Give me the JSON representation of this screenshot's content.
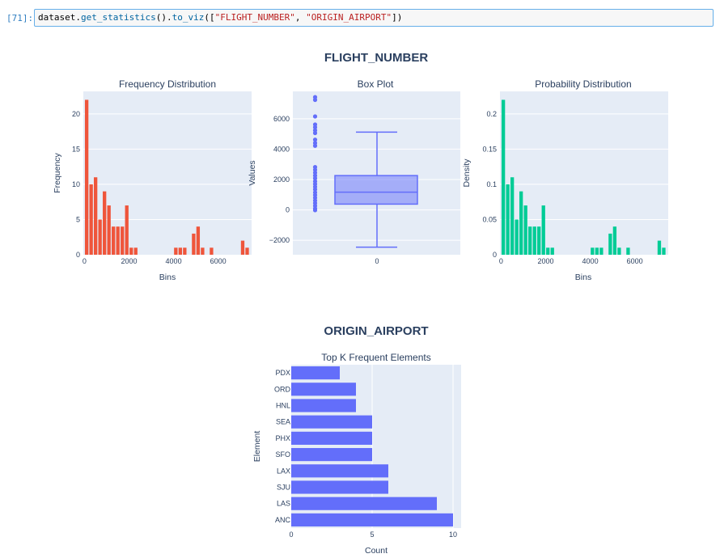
{
  "cell": {
    "prompt": "[71]:",
    "code_object": "dataset",
    "code_dot1": ".",
    "code_method1": "get_statistics",
    "code_call1": "().",
    "code_method2": "to_viz",
    "code_open": "([",
    "code_arg1": "\"FLIGHT_NUMBER\"",
    "code_sep": ", ",
    "code_arg2": "\"ORIGIN_AIRPORT\"",
    "code_close": "])"
  },
  "colors": {
    "frequency_bars": "#ef553b",
    "density_bars": "#00cc96",
    "box": "#636efa",
    "topk_bars": "#636efa",
    "plot_background": "#e5ecf6"
  },
  "chart_data": [
    {
      "type": "bar",
      "section_title": "FLIGHT_NUMBER",
      "title": "Frequency Distribution",
      "xlabel": "Bins",
      "ylabel": "Frequency",
      "bin_width": 200,
      "x": [
        0,
        200,
        400,
        600,
        800,
        1000,
        1200,
        1400,
        1600,
        1800,
        2000,
        2200,
        2400,
        2600,
        2800,
        3000,
        3200,
        3400,
        3600,
        3800,
        4000,
        4200,
        4400,
        4600,
        4800,
        5000,
        5200,
        5400,
        5600,
        5800,
        6000,
        6200,
        6400,
        6600,
        6800,
        7000,
        7200
      ],
      "values": [
        22,
        10,
        11,
        5,
        9,
        7,
        4,
        4,
        4,
        7,
        1,
        1,
        0,
        0,
        0,
        0,
        0,
        0,
        0,
        0,
        1,
        1,
        1,
        0,
        3,
        4,
        1,
        0,
        1,
        0,
        0,
        0,
        0,
        0,
        0,
        2,
        1
      ],
      "xlim": [
        -50,
        7500
      ],
      "ylim": [
        0,
        23.2
      ],
      "xticks": [
        0,
        2000,
        4000,
        6000
      ],
      "xtick_labels": [
        "0",
        "2000",
        "4000",
        "6000"
      ],
      "yticks": [
        0,
        5,
        10,
        15,
        20
      ],
      "ytick_labels": [
        "0",
        "5",
        "10",
        "15",
        "20"
      ],
      "grid": true
    },
    {
      "type": "box",
      "title": "Box Plot",
      "ylabel": "Values",
      "category": "0",
      "whisker_low": -2450,
      "q1": 380,
      "median": 1170,
      "q3": 2260,
      "whisker_high": 5120,
      "outliers": [
        7420,
        7240,
        6150,
        5620,
        5440,
        5240,
        5060,
        4620,
        4400,
        4220,
        2820,
        2640,
        2450,
        2260,
        2080,
        1880,
        1700,
        1520,
        1350,
        1150,
        980,
        800,
        620,
        450,
        270,
        90,
        -20
      ],
      "ylim": [
        -2950,
        7800
      ],
      "yticks": [
        -2000,
        0,
        2000,
        4000,
        6000
      ],
      "ytick_labels": [
        "−2000",
        "0",
        "2000",
        "4000",
        "6000"
      ],
      "grid": true
    },
    {
      "type": "bar",
      "title": "Probability Distribution",
      "xlabel": "Bins",
      "ylabel": "Density",
      "bin_width": 200,
      "x": [
        0,
        200,
        400,
        600,
        800,
        1000,
        1200,
        1400,
        1600,
        1800,
        2000,
        2200,
        2400,
        2600,
        2800,
        3000,
        3200,
        3400,
        3600,
        3800,
        4000,
        4200,
        4400,
        4600,
        4800,
        5000,
        5200,
        5400,
        5600,
        5800,
        6000,
        6200,
        6400,
        6600,
        6800,
        7000,
        7200
      ],
      "values": [
        0.22,
        0.1,
        0.11,
        0.05,
        0.09,
        0.07,
        0.04,
        0.04,
        0.04,
        0.07,
        0.01,
        0.01,
        0,
        0,
        0,
        0,
        0,
        0,
        0,
        0,
        0.01,
        0.01,
        0.01,
        0,
        0.03,
        0.04,
        0.01,
        0,
        0.01,
        0,
        0,
        0,
        0,
        0,
        0,
        0.02,
        0.01
      ],
      "xlim": [
        -50,
        7500
      ],
      "ylim": [
        0,
        0.232
      ],
      "xticks": [
        0,
        2000,
        4000,
        6000
      ],
      "xtick_labels": [
        "0",
        "2000",
        "4000",
        "6000"
      ],
      "yticks": [
        0,
        0.05,
        0.1,
        0.15,
        0.2
      ],
      "ytick_labels": [
        "0",
        "0.05",
        "0.1",
        "0.15",
        "0.2"
      ],
      "grid": true
    },
    {
      "type": "bar",
      "orientation": "horizontal",
      "section_title": "ORIGIN_AIRPORT",
      "title": "Top K Frequent Elements",
      "xlabel": "Count",
      "ylabel": "Element",
      "categories": [
        "PDX",
        "ORD",
        "HNL",
        "SEA",
        "PHX",
        "SFO",
        "LAX",
        "SJU",
        "LAS",
        "ANC"
      ],
      "values": [
        3,
        4,
        4,
        5,
        5,
        5,
        6,
        6,
        9,
        10
      ],
      "xlim": [
        0,
        10.5
      ],
      "xticks": [
        0,
        5,
        10
      ],
      "xtick_labels": [
        "0",
        "5",
        "10"
      ],
      "grid": true
    }
  ]
}
